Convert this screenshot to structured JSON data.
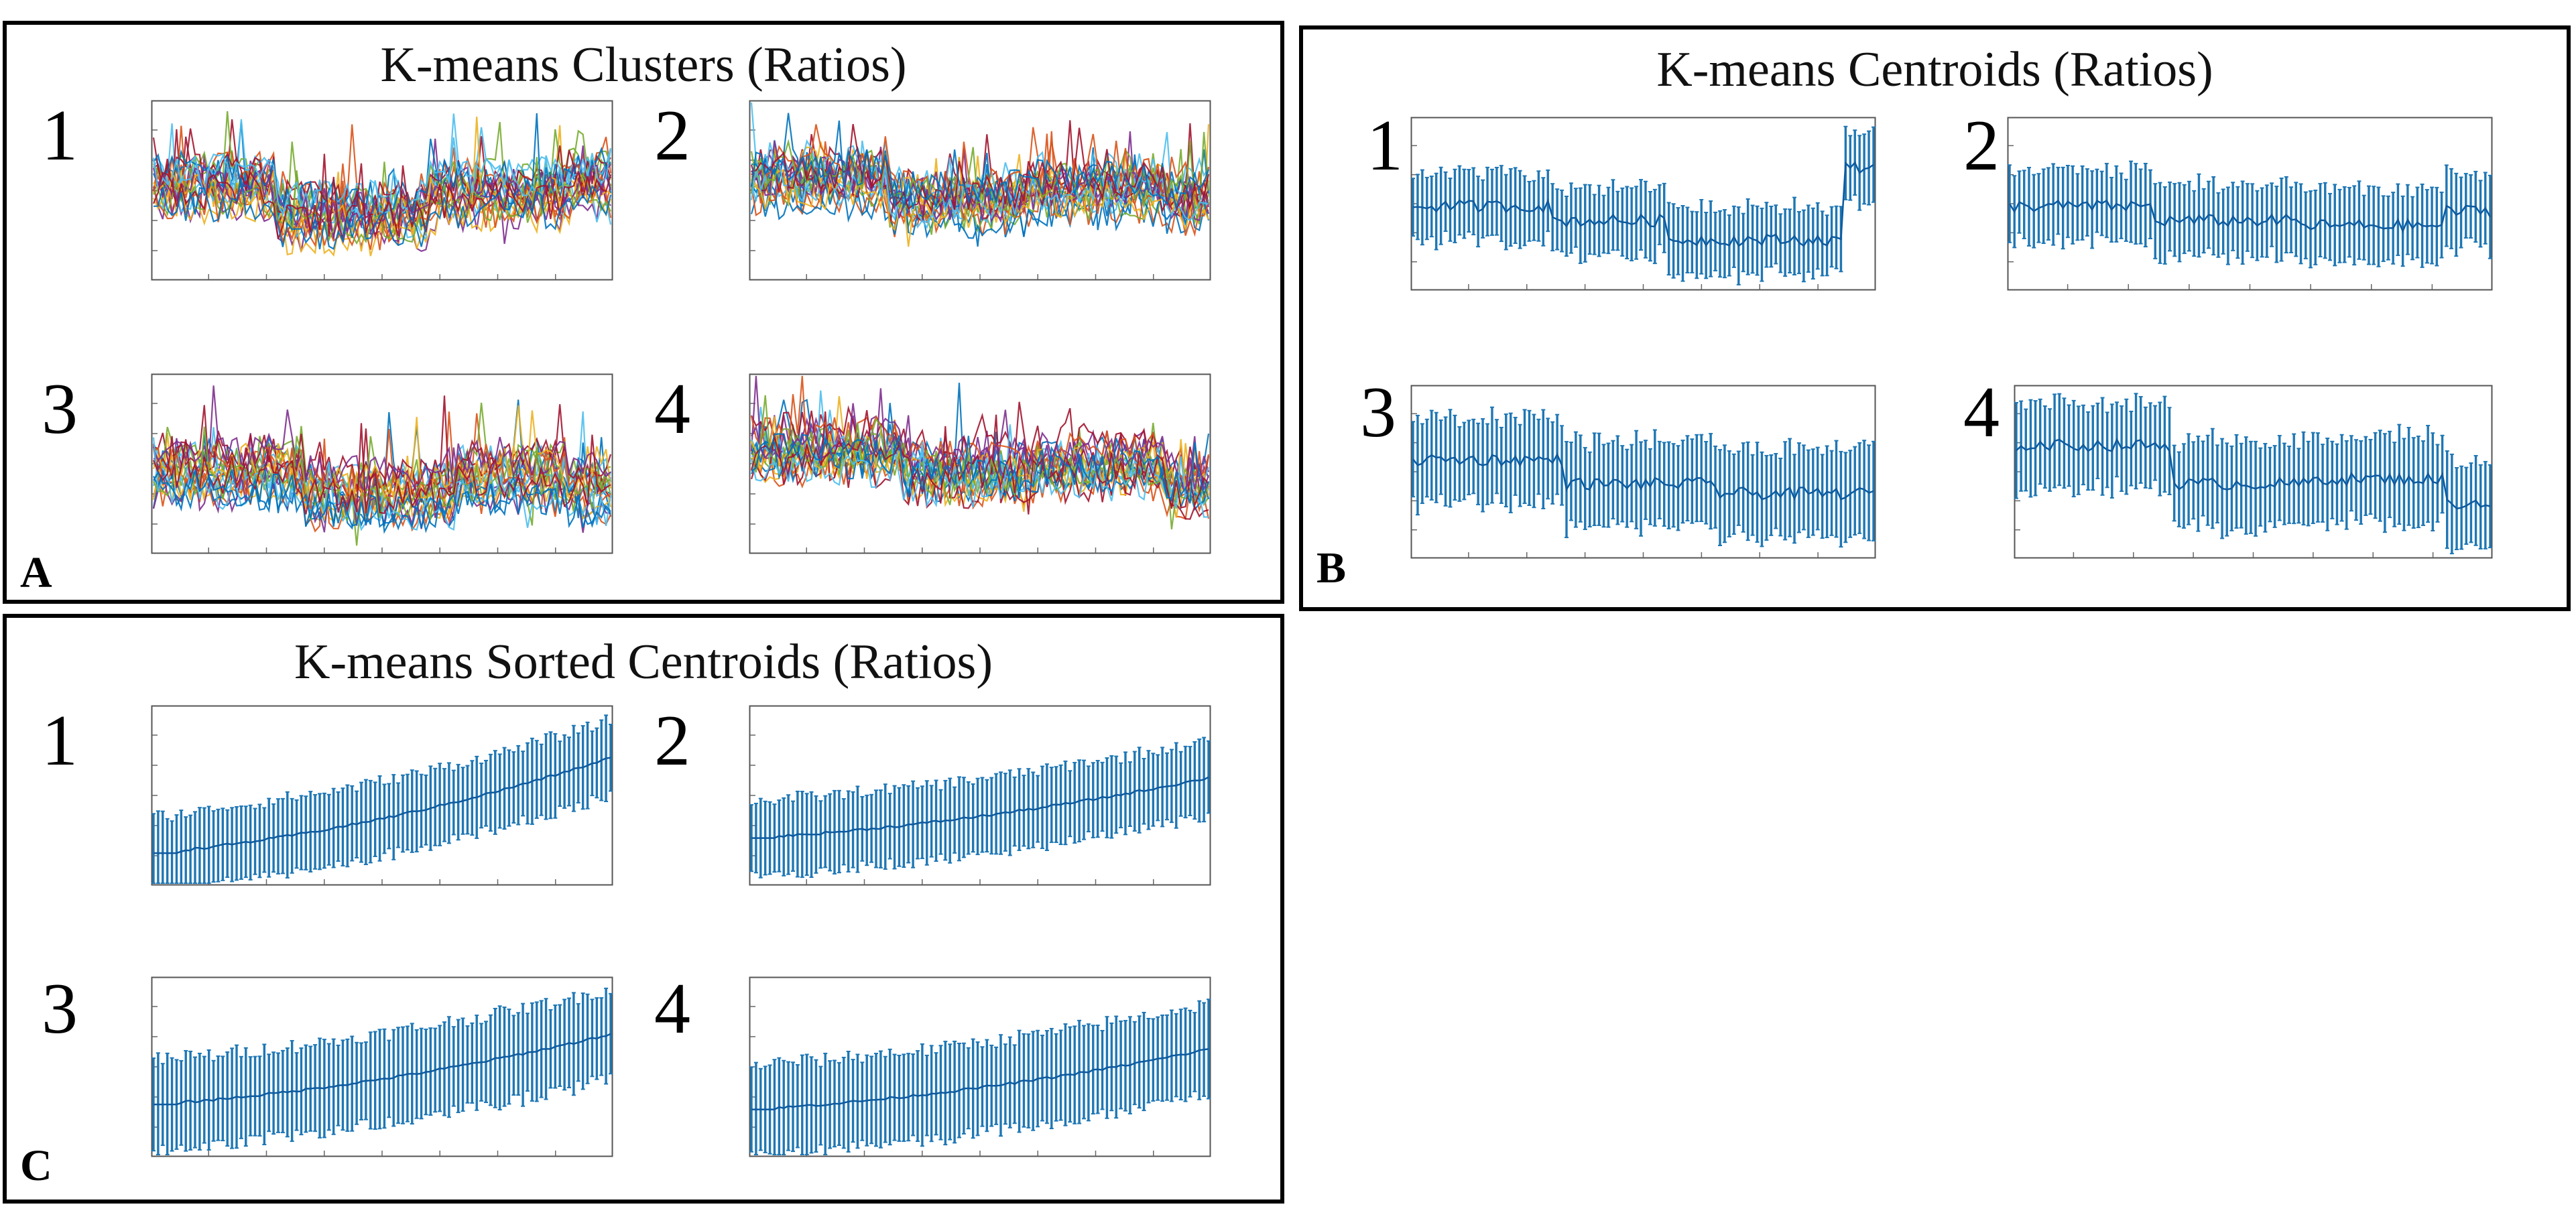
{
  "figure": {
    "panels": [
      {
        "id": "A",
        "letter": "A",
        "title": "K-means Clusters (Ratios)",
        "kind": "members",
        "clusters": [
          "1",
          "2",
          "3",
          "4"
        ]
      },
      {
        "id": "B",
        "letter": "B",
        "title": "K-means Centroids (Ratios)",
        "kind": "centroid",
        "clusters": [
          "1",
          "2",
          "3",
          "4"
        ]
      },
      {
        "id": "C",
        "letter": "C",
        "title": "K-means Sorted Centroids (Ratios)",
        "kind": "sorted",
        "clusters": [
          "1",
          "2",
          "3",
          "4"
        ]
      }
    ]
  },
  "colors": {
    "centroid": "#1f77b4",
    "palette": [
      "#0072BD",
      "#D95319",
      "#EDB120",
      "#7E2F8E",
      "#77AC30",
      "#4DBEEE",
      "#A2142F"
    ]
  },
  "chart_data": [
    {
      "panel": "A",
      "type": "line",
      "title": "K-means Clusters (Ratios)",
      "subplots": [
        {
          "cluster": "1",
          "n_points": 100,
          "ylim": [
            -2,
            3
          ],
          "segments": [
            [
              0,
              0.27,
              0.5
            ],
            [
              0.27,
              0.6,
              -0.3
            ],
            [
              0.6,
              0.9,
              0.3
            ],
            [
              0.9,
              1,
              0.6
            ]
          ]
        },
        {
          "cluster": "2",
          "n_points": 100,
          "ylim": [
            -6,
            2
          ],
          "segments": [
            [
              0,
              0.3,
              -1.5
            ],
            [
              0.3,
              0.6,
              -2.5
            ],
            [
              0.6,
              0.9,
              -2.0
            ],
            [
              0.9,
              1,
              -2.4
            ]
          ]
        },
        {
          "cluster": "3",
          "n_points": 100,
          "ylim": [
            -2,
            3
          ],
          "segments": [
            [
              0,
              0.33,
              0.3
            ],
            [
              0.33,
              0.66,
              -0.3
            ],
            [
              0.66,
              0.9,
              0.2
            ],
            [
              0.9,
              1,
              -0.2
            ]
          ]
        },
        {
          "cluster": "4",
          "n_points": 100,
          "ylim": [
            -2,
            4
          ],
          "segments": [
            [
              0,
              0.33,
              1.5
            ],
            [
              0.33,
              0.62,
              0.8
            ],
            [
              0.62,
              0.9,
              1.0
            ],
            [
              0.9,
              1,
              0.3
            ]
          ]
        }
      ]
    },
    {
      "panel": "B",
      "type": "line",
      "title": "K-means Centroids (Ratios)",
      "error_bars": true,
      "subplots": [
        {
          "cluster": "1",
          "n_points": 100,
          "ylim": [
            -1.5,
            2
          ],
          "errorbar": 0.7,
          "segments": [
            [
              0,
              0.3,
              0.2
            ],
            [
              0.3,
              0.55,
              -0.1
            ],
            [
              0.55,
              0.93,
              -0.5
            ],
            [
              0.93,
              1,
              1.0
            ]
          ]
        },
        {
          "cluster": "2",
          "n_points": 100,
          "ylim": [
            -1.5,
            2
          ],
          "errorbar": 0.75,
          "segments": [
            [
              0,
              0.3,
              0.2
            ],
            [
              0.3,
              0.6,
              -0.1
            ],
            [
              0.6,
              0.9,
              -0.2
            ],
            [
              0.9,
              1,
              0.1
            ]
          ]
        },
        {
          "cluster": "3",
          "n_points": 100,
          "ylim": [
            -1.5,
            2
          ],
          "errorbar": 0.9,
          "segments": [
            [
              0,
              0.33,
              0.5
            ],
            [
              0.33,
              0.66,
              0.0
            ],
            [
              0.66,
              1,
              -0.2
            ]
          ]
        },
        {
          "cluster": "4",
          "n_points": 100,
          "ylim": [
            -1.5,
            2
          ],
          "errorbar": 0.9,
          "segments": [
            [
              0,
              0.33,
              0.8
            ],
            [
              0.33,
              0.62,
              0.0
            ],
            [
              0.62,
              0.9,
              0.1
            ],
            [
              0.9,
              1,
              -0.4
            ]
          ]
        }
      ]
    },
    {
      "panel": "C",
      "type": "line",
      "title": "K-means Sorted Centroids (Ratios)",
      "error_bars": true,
      "subplots": [
        {
          "cluster": "1",
          "n_points": 100,
          "ylim": [
            -1.5,
            2
          ],
          "errorbar": 0.75,
          "start": -0.9,
          "end": 1.0
        },
        {
          "cluster": "2",
          "n_points": 100,
          "ylim": [
            -1.5,
            2
          ],
          "errorbar": 0.75,
          "start": -0.6,
          "end": 0.6
        },
        {
          "cluster": "3",
          "n_points": 100,
          "ylim": [
            -1.5,
            2
          ],
          "errorbar": 0.9,
          "start": -0.5,
          "end": 0.9
        },
        {
          "cluster": "4",
          "n_points": 100,
          "ylim": [
            -1.5,
            2
          ],
          "errorbar": 0.9,
          "start": -0.6,
          "end": 0.6
        }
      ]
    }
  ]
}
